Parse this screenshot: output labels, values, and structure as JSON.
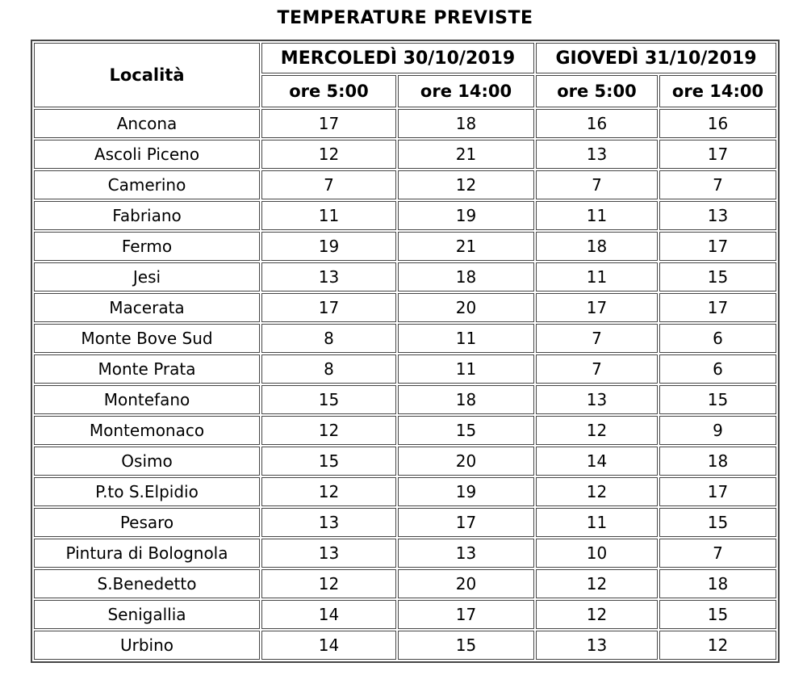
{
  "title": "TEMPERATURE PREVISTE",
  "table": {
    "location_header": "Località",
    "day_headers": [
      "MERCOLEDÌ 30/10/2019",
      "GIOVEDÌ 31/10/2019"
    ],
    "time_headers": [
      "ore 5:00",
      "ore 14:00",
      "ore 5:00",
      "ore 14:00"
    ],
    "rows": [
      {
        "location": "Ancona",
        "values": [
          17,
          18,
          16,
          16
        ]
      },
      {
        "location": "Ascoli Piceno",
        "values": [
          12,
          21,
          13,
          17
        ]
      },
      {
        "location": "Camerino",
        "values": [
          7,
          12,
          7,
          7
        ]
      },
      {
        "location": "Fabriano",
        "values": [
          11,
          19,
          11,
          13
        ]
      },
      {
        "location": "Fermo",
        "values": [
          19,
          21,
          18,
          17
        ]
      },
      {
        "location": "Jesi",
        "values": [
          13,
          18,
          11,
          15
        ]
      },
      {
        "location": "Macerata",
        "values": [
          17,
          20,
          17,
          17
        ]
      },
      {
        "location": "Monte Bove Sud",
        "values": [
          8,
          11,
          7,
          6
        ]
      },
      {
        "location": "Monte Prata",
        "values": [
          8,
          11,
          7,
          6
        ]
      },
      {
        "location": "Montefano",
        "values": [
          15,
          18,
          13,
          15
        ]
      },
      {
        "location": "Montemonaco",
        "values": [
          12,
          15,
          12,
          9
        ]
      },
      {
        "location": "Osimo",
        "values": [
          15,
          20,
          14,
          18
        ]
      },
      {
        "location": "P.to S.Elpidio",
        "values": [
          12,
          19,
          12,
          17
        ]
      },
      {
        "location": "Pesaro",
        "values": [
          13,
          17,
          11,
          15
        ]
      },
      {
        "location": "Pintura di Bolognola",
        "values": [
          13,
          13,
          10,
          7
        ]
      },
      {
        "location": "S.Benedetto",
        "values": [
          12,
          20,
          12,
          18
        ]
      },
      {
        "location": "Senigallia",
        "values": [
          14,
          17,
          12,
          15
        ]
      },
      {
        "location": "Urbino",
        "values": [
          14,
          15,
          13,
          12
        ]
      }
    ]
  },
  "colors": {
    "border": "#464646",
    "text": "#000000",
    "background": "#ffffff"
  },
  "chart_data": {
    "type": "table",
    "title": "TEMPERATURE PREVISTE",
    "column_groups": [
      "Località",
      "MERCOLEDÌ 30/10/2019",
      "GIOVEDÌ 31/10/2019"
    ],
    "columns": [
      "Località",
      "MERCOLEDÌ 30/10/2019 ore 5:00",
      "MERCOLEDÌ 30/10/2019 ore 14:00",
      "GIOVEDÌ 31/10/2019 ore 5:00",
      "GIOVEDÌ 31/10/2019 ore 14:00"
    ],
    "rows": [
      [
        "Ancona",
        17,
        18,
        16,
        16
      ],
      [
        "Ascoli Piceno",
        12,
        21,
        13,
        17
      ],
      [
        "Camerino",
        7,
        12,
        7,
        7
      ],
      [
        "Fabriano",
        11,
        19,
        11,
        13
      ],
      [
        "Fermo",
        19,
        21,
        18,
        17
      ],
      [
        "Jesi",
        13,
        18,
        11,
        15
      ],
      [
        "Macerata",
        17,
        20,
        17,
        17
      ],
      [
        "Monte Bove Sud",
        8,
        11,
        7,
        6
      ],
      [
        "Monte Prata",
        8,
        11,
        7,
        6
      ],
      [
        "Montefano",
        15,
        18,
        13,
        15
      ],
      [
        "Montemonaco",
        12,
        15,
        12,
        9
      ],
      [
        "Osimo",
        15,
        20,
        14,
        18
      ],
      [
        "P.to S.Elpidio",
        12,
        19,
        12,
        17
      ],
      [
        "Pesaro",
        13,
        17,
        11,
        15
      ],
      [
        "Pintura di Bolognola",
        13,
        13,
        10,
        7
      ],
      [
        "S.Benedetto",
        12,
        20,
        12,
        18
      ],
      [
        "Senigallia",
        14,
        17,
        12,
        15
      ],
      [
        "Urbino",
        14,
        15,
        13,
        12
      ]
    ]
  }
}
